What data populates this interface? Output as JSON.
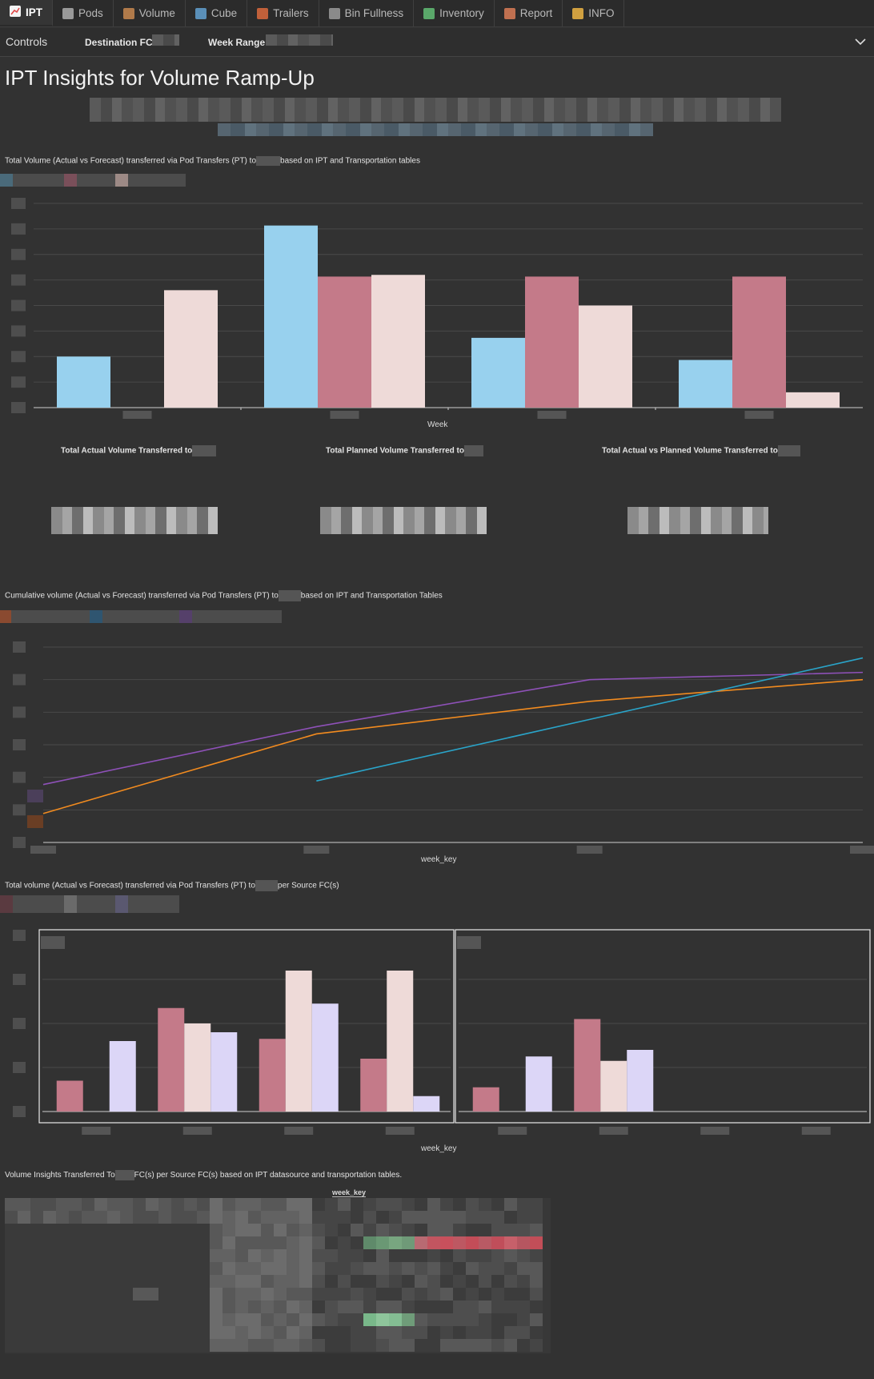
{
  "tabs": [
    {
      "label": "IPT",
      "icon": "chart-icon",
      "color": "#e05050",
      "active": true
    },
    {
      "label": "Pods",
      "icon": "pod-icon",
      "color": "#9a9a9a"
    },
    {
      "label": "Volume",
      "icon": "box-icon",
      "color": "#b07a4a"
    },
    {
      "label": "Cube",
      "icon": "cube-icon",
      "color": "#5a8fb8"
    },
    {
      "label": "Trailers",
      "icon": "truck-icon",
      "color": "#c0603a"
    },
    {
      "label": "Bin Fullness",
      "icon": "bin-icon",
      "color": "#8a8a8a"
    },
    {
      "label": "Inventory",
      "icon": "books-icon",
      "color": "#5aa86a"
    },
    {
      "label": "Report",
      "icon": "report-icon",
      "color": "#c07050"
    },
    {
      "label": "INFO",
      "icon": "info-person-icon",
      "color": "#d0a040"
    }
  ],
  "controls": {
    "label": "Controls",
    "destination_label": "Destination FC",
    "week_range_label": "Week Range"
  },
  "page": {
    "title": "IPT Insights for Volume Ramp-Up"
  },
  "chart1": {
    "title_pre": "Total Volume (Actual vs Forecast) transferred via Pod Transfers (PT) to",
    "title_post": "based on IPT and Transportation tables",
    "xlabel": "Week"
  },
  "kpis": [
    {
      "title": "Total Actual Volume Transferred to"
    },
    {
      "title": "Total Planned Volume Transferred to"
    },
    {
      "title": "Total Actual vs Planned Volume Transferred to"
    }
  ],
  "chart2": {
    "title_pre": "Cumulative volume (Actual vs Forecast) transferred via Pod Transfers (PT) to",
    "title_post": "based on IPT and Transportation Tables",
    "xlabel": "week_key"
  },
  "chart3": {
    "title_pre": "Total volume (Actual vs Forecast) transferred via Pod Transfers (PT) to",
    "title_post": "per Source FC(s)",
    "xlabel": "week_key"
  },
  "pivot": {
    "title_pre": "Volume Insights Transferred To",
    "title_post": "FC(s) per Source FC(s) based on IPT datasource and transportation tables.",
    "column_header": "week_key"
  },
  "chart_data": [
    {
      "type": "bar",
      "categories": [
        "",
        "",
        "",
        ""
      ],
      "series": [
        {
          "values": [
            30,
            107,
            41,
            28
          ],
          "color": "#98d1ee"
        },
        {
          "values": [
            0,
            77,
            77,
            77
          ],
          "color": "#c47a89"
        },
        {
          "values": [
            69,
            78,
            60,
            9
          ],
          "color": "#eedad8"
        }
      ],
      "xlabel": "Week",
      "ylim": [
        0,
        120
      ],
      "grid": true
    },
    {
      "type": "line",
      "x": [
        "",
        "",
        "",
        ""
      ],
      "series": [
        {
          "values": [
            16,
            32,
            45,
            47
          ],
          "color": "#8e51b8"
        },
        {
          "values": [
            8,
            30,
            39,
            45
          ],
          "color": "#f28b1f"
        },
        {
          "values": [
            null,
            17,
            34,
            51
          ],
          "color": "#2aa4c9"
        }
      ],
      "xlabel": "week_key",
      "ylim": [
        0,
        54
      ],
      "grid": true
    },
    {
      "type": "bar",
      "panels": [
        {
          "series": [
            {
              "values": [
                14,
                47,
                33,
                24
              ],
              "color": "#c47a89"
            },
            {
              "values": [
                0,
                40,
                64,
                64
              ],
              "color": "#eedad8"
            },
            {
              "values": [
                32,
                36,
                49,
                7
              ],
              "color": "#dcd6f7"
            }
          ]
        },
        {
          "series": [
            {
              "values": [
                11,
                42,
                0,
                0
              ],
              "color": "#c47a89"
            },
            {
              "values": [
                0,
                23,
                0,
                0
              ],
              "color": "#eedad8"
            },
            {
              "values": [
                25,
                28,
                0,
                0
              ],
              "color": "#dcd6f7"
            }
          ]
        }
      ],
      "categories": [
        "",
        "",
        "",
        ""
      ],
      "xlabel": "week_key",
      "ylim": [
        0,
        80
      ],
      "grid": true
    }
  ]
}
